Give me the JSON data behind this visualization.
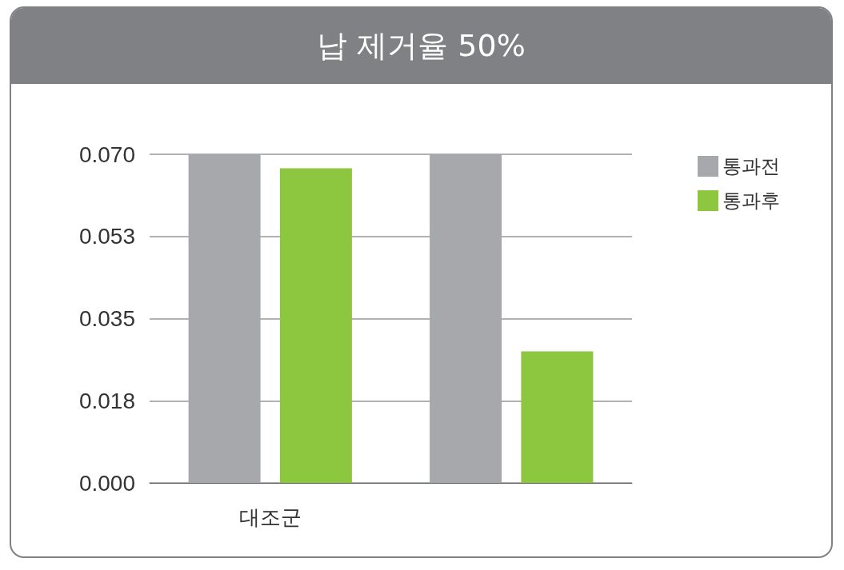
{
  "chart_data": {
    "type": "bar",
    "title": "납 제거율 50%",
    "categories": [
      "대조군",
      null
    ],
    "series": [
      {
        "name": "통과전",
        "color": "#a7a8ab",
        "values": [
          0.07,
          0.07
        ]
      },
      {
        "name": "통과후",
        "color": "#8dc63f",
        "values": [
          0.067,
          0.028
        ]
      }
    ],
    "ylim": [
      0,
      0.07
    ],
    "yticks": [
      {
        "value": 0,
        "label": "0.000"
      },
      {
        "value": 0.0175,
        "label": "0.018"
      },
      0.035,
      {
        "value": 0.0525,
        "label": "0.053"
      },
      {
        "value": 0.07,
        "label": "0.070"
      }
    ],
    "grid": "y",
    "legend": "top right"
  }
}
